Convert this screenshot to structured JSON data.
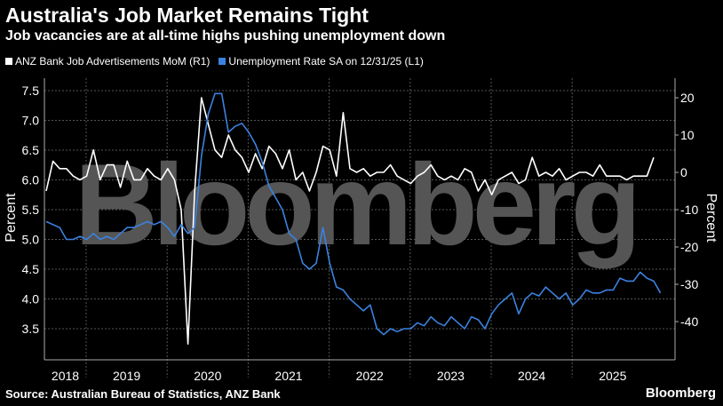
{
  "title": "Australia's Job Market Remains Tight",
  "subtitle": "Job vacancies are at all-time highs pushing unemployment down",
  "source": "Source: Australian Bureau of Statistics, ANZ Bank",
  "logo": "Bloomberg",
  "watermark": "Bloomberg",
  "chart_data": {
    "type": "line",
    "x_start": "2018-07",
    "frequency": "monthly",
    "xticks": [
      "2018",
      "2019",
      "2020",
      "2021",
      "2022",
      "2023",
      "2024",
      "2025"
    ],
    "left_axis": {
      "label": "Percent",
      "ylim": [
        3.0,
        7.75
      ],
      "ticks": [
        "3.5",
        "4.0",
        "4.5",
        "5.0",
        "5.5",
        "6.0",
        "6.5",
        "7.0",
        "7.5"
      ]
    },
    "right_axis": {
      "label": "Percent",
      "ylim": [
        -50,
        27
      ],
      "ticks": [
        "-40",
        "-30",
        "-20",
        "-10",
        "0",
        "10",
        "20"
      ]
    },
    "grid": true,
    "series": [
      {
        "name": "ANZ Bank Job Advertisements MoM (R1)",
        "axis": "right",
        "color": "#ffffff",
        "values": [
          -5,
          3,
          1,
          1,
          -1,
          -2,
          -1,
          6,
          -2,
          2,
          2,
          -4,
          3,
          -2,
          -2,
          1,
          -1,
          -2,
          1,
          -2,
          -10,
          -46,
          -5,
          20,
          13,
          6,
          4,
          10,
          6,
          4,
          0,
          5,
          1,
          7,
          5,
          1,
          6,
          -2,
          0,
          -5,
          0,
          7,
          6,
          -1,
          16,
          1,
          0,
          1,
          -1,
          0,
          0,
          2,
          -1,
          -2,
          -3,
          -1,
          0,
          2,
          -1,
          -2,
          -1,
          -2,
          1,
          0,
          -5,
          -2,
          -6,
          -2,
          -1,
          0,
          -3,
          -2,
          4,
          -1,
          0,
          -1,
          1,
          -2,
          -1,
          0,
          0,
          -1,
          2,
          -1,
          -1,
          -1,
          -2,
          -1,
          -1,
          -1,
          4
        ]
      },
      {
        "name": "Unemployment Rate SA on 12/31/25 (L1)",
        "axis": "left",
        "color": "#3b82e0",
        "values": [
          5.3,
          5.25,
          5.2,
          5.0,
          5.0,
          5.05,
          5.0,
          5.1,
          5.0,
          5.05,
          5.0,
          5.1,
          5.2,
          5.2,
          5.25,
          5.3,
          5.25,
          5.3,
          5.2,
          5.05,
          5.25,
          5.1,
          5.2,
          6.4,
          7.1,
          7.45,
          7.45,
          6.8,
          6.9,
          6.95,
          6.8,
          6.6,
          6.3,
          5.9,
          5.7,
          5.5,
          5.1,
          5.0,
          4.6,
          4.5,
          4.6,
          5.2,
          4.6,
          4.2,
          4.15,
          4.0,
          3.9,
          3.8,
          3.9,
          3.5,
          3.4,
          3.5,
          3.45,
          3.5,
          3.5,
          3.6,
          3.55,
          3.7,
          3.6,
          3.55,
          3.7,
          3.6,
          3.5,
          3.7,
          3.65,
          3.5,
          3.75,
          3.9,
          4.0,
          4.1,
          3.75,
          4.0,
          4.1,
          4.05,
          4.2,
          4.1,
          4.0,
          4.1,
          3.9,
          4.0,
          4.15,
          4.1,
          4.1,
          4.15,
          4.15,
          4.35,
          4.3,
          4.3,
          4.45,
          4.35,
          4.3,
          4.1
        ]
      }
    ]
  }
}
